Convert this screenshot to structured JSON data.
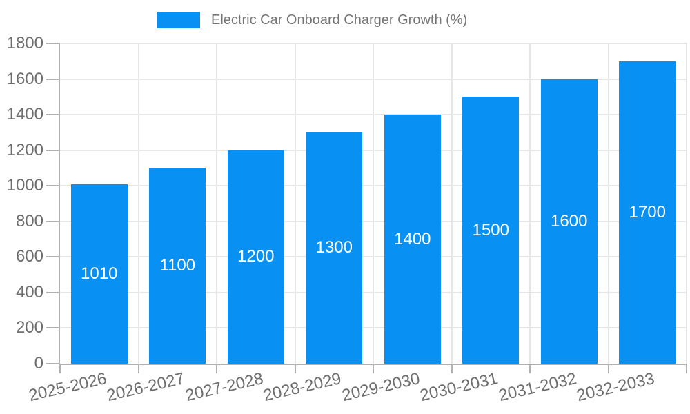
{
  "chart_data": {
    "type": "bar",
    "title": "Electric Car Onboard Charger Growth (%)",
    "categories": [
      "2025-2026",
      "2026-2027",
      "2027-2028",
      "2028-2029",
      "2029-2030",
      "2030-2031",
      "2031-2032",
      "2032-2033"
    ],
    "values": [
      1010,
      1100,
      1200,
      1300,
      1400,
      1500,
      1600,
      1700
    ],
    "value_labels": [
      "1010",
      "1100",
      "1200",
      "1300",
      "1400",
      "1500",
      "1600",
      "1700"
    ],
    "xlabel": "",
    "ylabel": "",
    "ylim": [
      0,
      1800
    ],
    "yticks": [
      0,
      200,
      400,
      600,
      800,
      1000,
      1200,
      1400,
      1600,
      1800
    ],
    "ytick_labels": [
      "0",
      "200",
      "400",
      "600",
      "800",
      "1000",
      "1200",
      "1400",
      "1600",
      "1800"
    ],
    "grid": true,
    "legend_position": "top-center",
    "legend_entries": [
      "Electric Car Onboard Charger Growth (%)"
    ],
    "colors": {
      "bar": "#0890F2",
      "grid": "#E6E6E6",
      "axis": "#B0B0B0",
      "tick_text": "#6E6E6E",
      "legend_text": "#757575",
      "value_label": "#FFFFFF",
      "background": "#FFFFFF"
    }
  }
}
